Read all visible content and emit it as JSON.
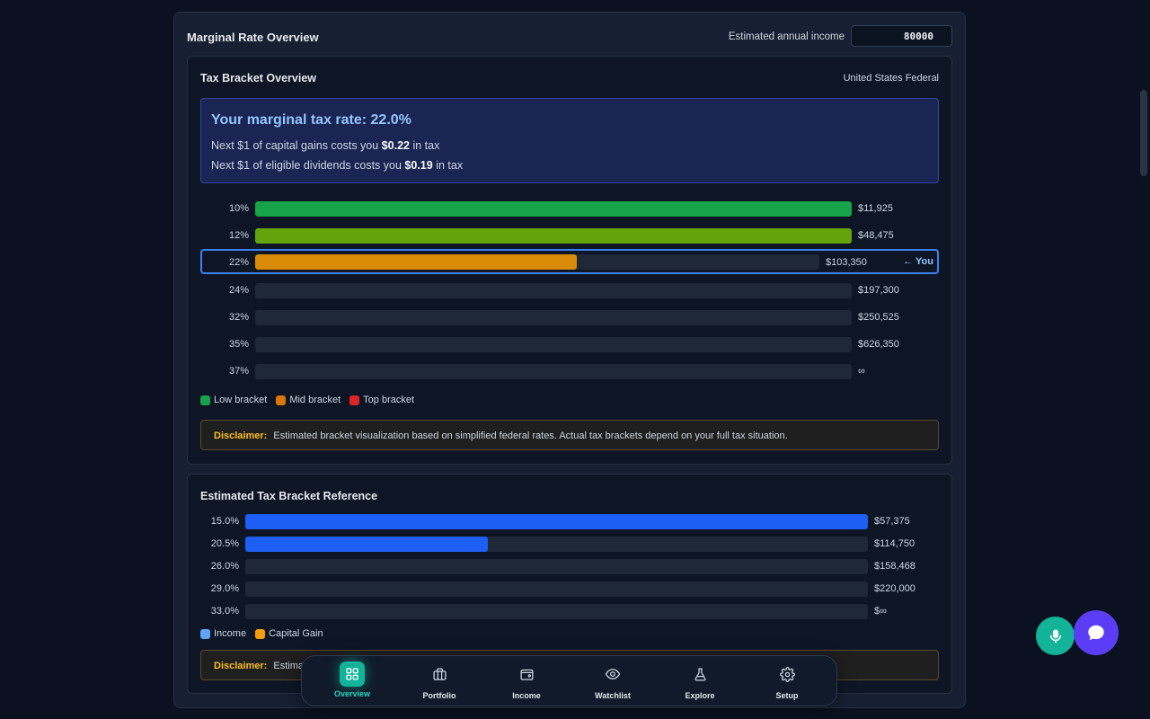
{
  "overview": {
    "title": "Marginal Rate Overview",
    "income_label": "Estimated annual income",
    "income_value": "80000"
  },
  "bracket_card": {
    "title": "Tax Bracket Overview",
    "jurisdiction": "United States Federal",
    "marginal": {
      "headline": "Your marginal tax rate: 22.0%",
      "cg_prefix": "Next $1 of capital gains costs you",
      "cg_amount": "$0.22",
      "cg_suffix": "in tax",
      "div_prefix": "Next $1 of eligible dividends costs you",
      "div_amount": "$0.19",
      "div_suffix": "in tax"
    },
    "you_marker": "← You",
    "brackets": [
      {
        "rate": "10%",
        "limit": "$11,925",
        "fill_fraction": 1.0,
        "color": "#16a34a"
      },
      {
        "rate": "12%",
        "limit": "$48,475",
        "fill_fraction": 1.0,
        "color": "#65a30d"
      },
      {
        "rate": "22%",
        "limit": "$103,350",
        "fill_fraction": 0.57,
        "color": "#d98a06"
      },
      {
        "rate": "24%",
        "limit": "$197,300",
        "fill_fraction": 0,
        "color": "#1e2837"
      },
      {
        "rate": "32%",
        "limit": "$250,525",
        "fill_fraction": 0,
        "color": "#1e2837"
      },
      {
        "rate": "35%",
        "limit": "$626,350",
        "fill_fraction": 0,
        "color": "#1e2837"
      },
      {
        "rate": "37%",
        "limit": "∞",
        "fill_fraction": 0,
        "color": "#1e2837"
      }
    ],
    "legend": [
      {
        "label": "Low bracket",
        "color": "#16a34a"
      },
      {
        "label": "Mid bracket",
        "color": "#d97706"
      },
      {
        "label": "Top bracket",
        "color": "#dc2626"
      }
    ],
    "disclaimer_label": "Disclaimer:",
    "disclaimer_text": "Estimated bracket visualization based on simplified federal rates. Actual tax brackets depend on your full tax situation."
  },
  "reference_card": {
    "title": "Estimated Tax Bracket Reference",
    "rows": [
      {
        "rate": "15.0%",
        "limit": "$57,375",
        "fill_fraction": 1.0
      },
      {
        "rate": "20.5%",
        "limit": "$114,750",
        "fill_fraction": 0.39
      },
      {
        "rate": "26.0%",
        "limit": "$158,468",
        "fill_fraction": 0
      },
      {
        "rate": "29.0%",
        "limit": "$220,000",
        "fill_fraction": 0
      },
      {
        "rate": "33.0%",
        "limit": "$∞",
        "fill_fraction": 0
      }
    ],
    "legend": [
      {
        "label": "Income",
        "color": "#60a5fa"
      },
      {
        "label": "Capital Gain",
        "color": "#f59e0b"
      }
    ],
    "disclaimer_label": "Disclaimer:",
    "disclaimer_text": "Estimated"
  },
  "nav": {
    "items": [
      {
        "label": "Overview",
        "icon": "grid-icon"
      },
      {
        "label": "Portfolio",
        "icon": "briefcase-icon"
      },
      {
        "label": "Income",
        "icon": "wallet-icon"
      },
      {
        "label": "Watchlist",
        "icon": "eye-icon"
      },
      {
        "label": "Explore",
        "icon": "flask-icon"
      },
      {
        "label": "Setup",
        "icon": "gear-icon"
      }
    ],
    "active": "Overview"
  },
  "fabs": {
    "mic_icon": "microphone-icon",
    "chat_icon": "chat-bubble-icon"
  }
}
